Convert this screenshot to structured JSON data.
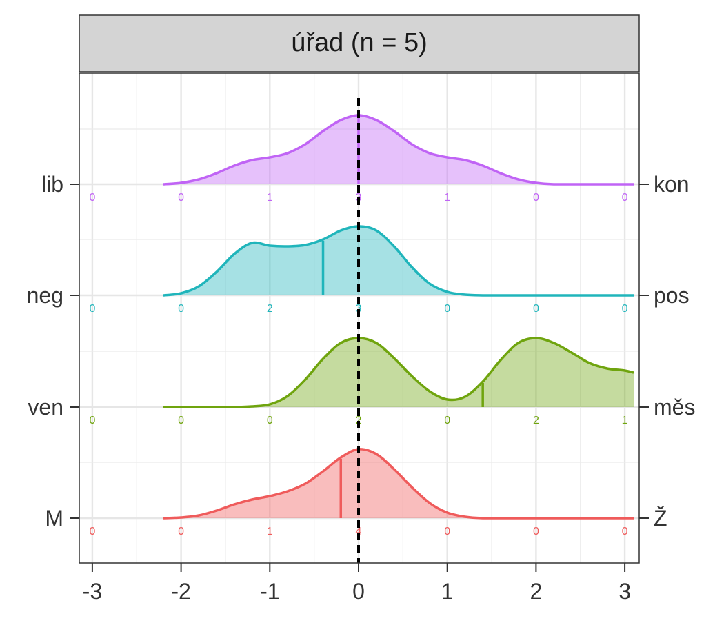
{
  "panel": {
    "title": "úřad (n = 5)"
  },
  "colors": {
    "lib-kon": "#c064f5",
    "neg-pos": "#20b5bb",
    "ven-mes": "#6fa40e",
    "M-Z": "#ef5b5b",
    "reference": "#000000",
    "grid": "#ebebeb",
    "strip_bg": "#d4d4d4"
  },
  "chart_data": {
    "type": "area",
    "title": "úřad (n = 5)",
    "xlim": [
      -3.1,
      3.1
    ],
    "x_ticks": [
      "-3",
      "-2",
      "-1",
      "0",
      "1",
      "2",
      "3"
    ],
    "count_positions": [
      -3,
      -2,
      -1,
      0,
      1,
      2,
      3
    ],
    "reference_line_x": 0,
    "grid": true,
    "rows": [
      {
        "key": "lib-kon",
        "left_label": "lib",
        "right_label": "kon",
        "mean": 0.0,
        "counts": [
          "0",
          "0",
          "1",
          "3",
          "1",
          "0",
          "0"
        ],
        "density_x": [
          -2.2,
          -2.0,
          -1.8,
          -1.6,
          -1.4,
          -1.2,
          -1.0,
          -0.8,
          -0.6,
          -0.4,
          -0.2,
          0.0,
          0.2,
          0.4,
          0.6,
          0.8,
          1.0,
          1.2,
          1.4,
          1.6,
          1.8,
          2.0,
          2.2,
          2.4,
          2.6,
          2.8,
          3.0,
          3.1
        ],
        "density_y": [
          0.0,
          0.02,
          0.07,
          0.16,
          0.27,
          0.35,
          0.39,
          0.45,
          0.58,
          0.77,
          0.93,
          1.0,
          0.93,
          0.77,
          0.58,
          0.45,
          0.39,
          0.35,
          0.27,
          0.16,
          0.07,
          0.02,
          0.0,
          0.0,
          0.0,
          0.0,
          0.0,
          0.0
        ]
      },
      {
        "key": "neg-pos",
        "left_label": "neg",
        "right_label": "pos",
        "mean": -0.4,
        "counts": [
          "0",
          "0",
          "2",
          "3",
          "0",
          "0",
          "0"
        ],
        "density_x": [
          -2.2,
          -2.0,
          -1.8,
          -1.6,
          -1.4,
          -1.2,
          -1.0,
          -0.8,
          -0.6,
          -0.4,
          -0.2,
          0.0,
          0.2,
          0.4,
          0.6,
          0.8,
          1.0,
          1.2,
          1.4,
          1.6,
          1.8,
          2.0,
          2.2,
          2.4,
          2.6,
          2.8,
          3.0,
          3.1
        ],
        "density_y": [
          0.0,
          0.03,
          0.13,
          0.34,
          0.6,
          0.76,
          0.72,
          0.71,
          0.73,
          0.81,
          0.94,
          1.0,
          0.94,
          0.71,
          0.41,
          0.17,
          0.05,
          0.01,
          0.0,
          0.0,
          0.0,
          0.0,
          0.0,
          0.0,
          0.0,
          0.0,
          0.0,
          0.0
        ]
      },
      {
        "key": "ven-mes",
        "left_label": "ven",
        "right_label": "měs",
        "mean": 1.4,
        "counts": [
          "0",
          "0",
          "0",
          "2",
          "0",
          "2",
          "1"
        ],
        "density_x": [
          -2.2,
          -2.0,
          -1.8,
          -1.6,
          -1.4,
          -1.2,
          -1.0,
          -0.8,
          -0.6,
          -0.4,
          -0.2,
          0.0,
          0.2,
          0.4,
          0.6,
          0.8,
          1.0,
          1.2,
          1.4,
          1.6,
          1.8,
          2.0,
          2.2,
          2.4,
          2.6,
          2.8,
          3.0,
          3.1
        ],
        "density_y": [
          0.0,
          0.0,
          0.0,
          0.0,
          0.0,
          0.01,
          0.04,
          0.16,
          0.4,
          0.7,
          0.93,
          1.0,
          0.93,
          0.71,
          0.45,
          0.23,
          0.11,
          0.15,
          0.37,
          0.68,
          0.93,
          1.0,
          0.93,
          0.79,
          0.64,
          0.56,
          0.53,
          0.5
        ]
      },
      {
        "key": "M-Z",
        "left_label": "M",
        "right_label": "Ž",
        "mean": -0.2,
        "counts": [
          "0",
          "0",
          "1",
          "4",
          "0",
          "0",
          "0"
        ],
        "density_x": [
          -2.2,
          -2.0,
          -1.8,
          -1.6,
          -1.4,
          -1.2,
          -1.0,
          -0.8,
          -0.6,
          -0.4,
          -0.2,
          0.0,
          0.2,
          0.4,
          0.6,
          0.8,
          1.0,
          1.2,
          1.4,
          1.6,
          1.8,
          2.0,
          2.2,
          2.4,
          2.6,
          2.8,
          3.0,
          3.1
        ],
        "density_y": [
          0.0,
          0.01,
          0.04,
          0.11,
          0.2,
          0.27,
          0.32,
          0.39,
          0.5,
          0.68,
          0.88,
          1.0,
          0.93,
          0.71,
          0.45,
          0.22,
          0.08,
          0.02,
          0.0,
          0.0,
          0.0,
          0.0,
          0.0,
          0.0,
          0.0,
          0.0,
          0.0,
          0.0
        ]
      }
    ]
  }
}
